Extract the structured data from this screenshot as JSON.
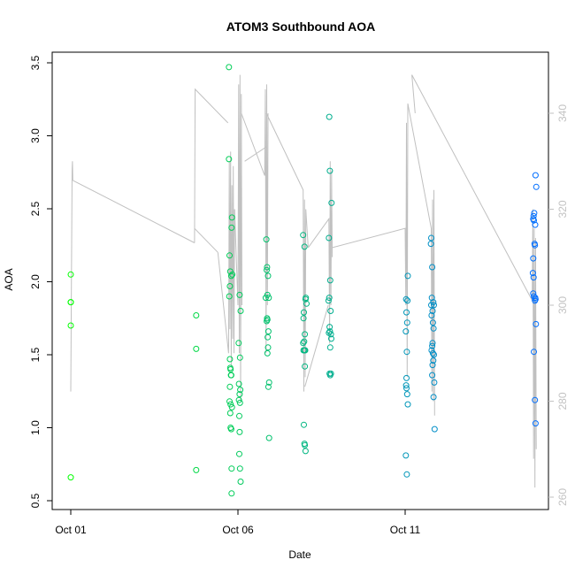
{
  "chart_data": {
    "type": "scatter",
    "title": "ATOM3 Southbound AOA",
    "xlabel": "Date",
    "ylabel": "AOA",
    "x_axis_type": "date",
    "x_ticks": [
      {
        "label": "Oct 01",
        "day": 1
      },
      {
        "label": "Oct 06",
        "day": 6
      },
      {
        "label": "Oct 11",
        "day": 11
      }
    ],
    "xlim": [
      0.3,
      15.9
    ],
    "ylim": [
      0.5,
      3.55
    ],
    "y_ticks": [
      0.5,
      1.0,
      1.5,
      2.0,
      2.5,
      3.0,
      3.5
    ],
    "y_tick_labels": [
      "0.5",
      "1.0",
      "1.5",
      "2.0",
      "2.5",
      "3.0",
      "3.5"
    ],
    "y2lim": [
      258.5,
      354
    ],
    "y2_ticks": [
      260,
      280,
      300,
      320,
      340
    ],
    "y2_tick_labels": [
      "260",
      "280",
      "300",
      "320",
      "340"
    ],
    "grid": false,
    "marker_color_gradient": [
      "#00ff00",
      "#0066ff"
    ],
    "line_color": "#c0c0c0",
    "points": [
      {
        "x": 1.0,
        "y": 2.05
      },
      {
        "x": 1.0,
        "y": 1.86
      },
      {
        "x": 1.0,
        "y": 1.86
      },
      {
        "x": 1.0,
        "y": 1.7
      },
      {
        "x": 1.0,
        "y": 0.66
      },
      {
        "x": 4.75,
        "y": 1.77
      },
      {
        "x": 4.75,
        "y": 1.54
      },
      {
        "x": 4.75,
        "y": 0.71
      },
      {
        "x": 5.73,
        "y": 3.47
      },
      {
        "x": 5.73,
        "y": 2.84
      },
      {
        "x": 5.75,
        "y": 2.18
      },
      {
        "x": 5.77,
        "y": 2.07
      },
      {
        "x": 5.76,
        "y": 1.97
      },
      {
        "x": 5.74,
        "y": 1.9
      },
      {
        "x": 5.82,
        "y": 2.44
      },
      {
        "x": 5.81,
        "y": 2.37
      },
      {
        "x": 5.83,
        "y": 2.05
      },
      {
        "x": 5.8,
        "y": 2.04
      },
      {
        "x": 5.76,
        "y": 1.47
      },
      {
        "x": 5.77,
        "y": 1.41
      },
      {
        "x": 5.78,
        "y": 1.4
      },
      {
        "x": 5.8,
        "y": 1.36
      },
      {
        "x": 5.79,
        "y": 1.36
      },
      {
        "x": 5.76,
        "y": 1.28
      },
      {
        "x": 5.75,
        "y": 1.18
      },
      {
        "x": 5.78,
        "y": 1.16
      },
      {
        "x": 5.82,
        "y": 1.14
      },
      {
        "x": 5.77,
        "y": 1.1
      },
      {
        "x": 5.78,
        "y": 1.0
      },
      {
        "x": 5.8,
        "y": 0.99
      },
      {
        "x": 5.81,
        "y": 0.72
      },
      {
        "x": 5.81,
        "y": 0.55
      },
      {
        "x": 6.02,
        "y": 1.58
      },
      {
        "x": 6.05,
        "y": 1.91
      },
      {
        "x": 6.08,
        "y": 1.8
      },
      {
        "x": 6.06,
        "y": 1.48
      },
      {
        "x": 6.03,
        "y": 1.3
      },
      {
        "x": 6.07,
        "y": 1.26
      },
      {
        "x": 6.05,
        "y": 1.23
      },
      {
        "x": 6.03,
        "y": 1.19
      },
      {
        "x": 6.06,
        "y": 1.17
      },
      {
        "x": 6.04,
        "y": 1.08
      },
      {
        "x": 6.05,
        "y": 0.97
      },
      {
        "x": 6.04,
        "y": 0.82
      },
      {
        "x": 6.06,
        "y": 0.72
      },
      {
        "x": 6.08,
        "y": 0.63
      },
      {
        "x": 6.85,
        "y": 2.29
      },
      {
        "x": 6.87,
        "y": 2.1
      },
      {
        "x": 6.86,
        "y": 2.08
      },
      {
        "x": 6.9,
        "y": 2.04
      },
      {
        "x": 6.88,
        "y": 1.91
      },
      {
        "x": 6.92,
        "y": 1.89
      },
      {
        "x": 6.83,
        "y": 1.89
      },
      {
        "x": 6.87,
        "y": 1.75
      },
      {
        "x": 6.88,
        "y": 1.74
      },
      {
        "x": 6.86,
        "y": 1.73
      },
      {
        "x": 6.91,
        "y": 1.66
      },
      {
        "x": 6.89,
        "y": 1.62
      },
      {
        "x": 6.9,
        "y": 1.55
      },
      {
        "x": 6.88,
        "y": 1.51
      },
      {
        "x": 6.93,
        "y": 1.31
      },
      {
        "x": 6.91,
        "y": 1.28
      },
      {
        "x": 6.93,
        "y": 0.93
      },
      {
        "x": 7.95,
        "y": 2.32
      },
      {
        "x": 7.99,
        "y": 2.24
      },
      {
        "x": 8.03,
        "y": 1.89
      },
      {
        "x": 8.02,
        "y": 1.88
      },
      {
        "x": 8.05,
        "y": 1.85
      },
      {
        "x": 7.97,
        "y": 1.79
      },
      {
        "x": 7.96,
        "y": 1.75
      },
      {
        "x": 8.0,
        "y": 1.64
      },
      {
        "x": 7.98,
        "y": 1.59
      },
      {
        "x": 7.95,
        "y": 1.58
      },
      {
        "x": 7.99,
        "y": 1.53
      },
      {
        "x": 8.01,
        "y": 1.53
      },
      {
        "x": 7.96,
        "y": 1.53
      },
      {
        "x": 8.0,
        "y": 1.42
      },
      {
        "x": 7.97,
        "y": 1.02
      },
      {
        "x": 7.99,
        "y": 0.89
      },
      {
        "x": 8.0,
        "y": 0.88
      },
      {
        "x": 8.02,
        "y": 0.84
      },
      {
        "x": 8.73,
        "y": 3.13
      },
      {
        "x": 8.75,
        "y": 2.76
      },
      {
        "x": 8.8,
        "y": 2.54
      },
      {
        "x": 8.72,
        "y": 2.3
      },
      {
        "x": 8.76,
        "y": 2.01
      },
      {
        "x": 8.73,
        "y": 1.89
      },
      {
        "x": 8.71,
        "y": 1.87
      },
      {
        "x": 8.77,
        "y": 1.8
      },
      {
        "x": 8.74,
        "y": 1.69
      },
      {
        "x": 8.75,
        "y": 1.66
      },
      {
        "x": 8.72,
        "y": 1.65
      },
      {
        "x": 8.78,
        "y": 1.64
      },
      {
        "x": 8.79,
        "y": 1.61
      },
      {
        "x": 8.76,
        "y": 1.55
      },
      {
        "x": 8.74,
        "y": 1.37
      },
      {
        "x": 8.78,
        "y": 1.37
      },
      {
        "x": 8.76,
        "y": 1.36
      },
      {
        "x": 11.03,
        "y": 1.88
      },
      {
        "x": 11.08,
        "y": 2.04
      },
      {
        "x": 11.07,
        "y": 1.87
      },
      {
        "x": 11.04,
        "y": 1.79
      },
      {
        "x": 11.06,
        "y": 1.72
      },
      {
        "x": 11.02,
        "y": 1.66
      },
      {
        "x": 11.05,
        "y": 1.52
      },
      {
        "x": 11.04,
        "y": 1.34
      },
      {
        "x": 11.03,
        "y": 1.29
      },
      {
        "x": 11.04,
        "y": 1.27
      },
      {
        "x": 11.06,
        "y": 1.23
      },
      {
        "x": 11.08,
        "y": 1.16
      },
      {
        "x": 11.02,
        "y": 0.81
      },
      {
        "x": 11.05,
        "y": 0.68
      },
      {
        "x": 11.78,
        "y": 2.3
      },
      {
        "x": 11.77,
        "y": 2.26
      },
      {
        "x": 11.81,
        "y": 2.1
      },
      {
        "x": 11.8,
        "y": 1.89
      },
      {
        "x": 11.84,
        "y": 1.86
      },
      {
        "x": 11.78,
        "y": 1.84
      },
      {
        "x": 11.86,
        "y": 1.84
      },
      {
        "x": 11.82,
        "y": 1.8
      },
      {
        "x": 11.79,
        "y": 1.77
      },
      {
        "x": 11.83,
        "y": 1.72
      },
      {
        "x": 11.85,
        "y": 1.68
      },
      {
        "x": 11.82,
        "y": 1.58
      },
      {
        "x": 11.81,
        "y": 1.56
      },
      {
        "x": 11.79,
        "y": 1.53
      },
      {
        "x": 11.83,
        "y": 1.51
      },
      {
        "x": 11.86,
        "y": 1.5
      },
      {
        "x": 11.84,
        "y": 1.46
      },
      {
        "x": 11.82,
        "y": 1.43
      },
      {
        "x": 11.81,
        "y": 1.36
      },
      {
        "x": 11.87,
        "y": 1.31
      },
      {
        "x": 11.85,
        "y": 1.21
      },
      {
        "x": 11.88,
        "y": 0.99
      },
      {
        "x": 14.9,
        "y": 2.73
      },
      {
        "x": 14.92,
        "y": 2.65
      },
      {
        "x": 14.86,
        "y": 2.47
      },
      {
        "x": 14.84,
        "y": 2.45
      },
      {
        "x": 14.83,
        "y": 2.43
      },
      {
        "x": 14.85,
        "y": 2.42
      },
      {
        "x": 14.89,
        "y": 2.39
      },
      {
        "x": 14.87,
        "y": 2.26
      },
      {
        "x": 14.88,
        "y": 2.25
      },
      {
        "x": 14.83,
        "y": 2.16
      },
      {
        "x": 14.82,
        "y": 2.06
      },
      {
        "x": 14.84,
        "y": 2.03
      },
      {
        "x": 14.83,
        "y": 1.92
      },
      {
        "x": 14.85,
        "y": 1.9
      },
      {
        "x": 14.89,
        "y": 1.89
      },
      {
        "x": 14.9,
        "y": 1.88
      },
      {
        "x": 14.88,
        "y": 1.87
      },
      {
        "x": 14.91,
        "y": 1.71
      },
      {
        "x": 14.85,
        "y": 1.52
      },
      {
        "x": 14.88,
        "y": 1.19
      },
      {
        "x": 14.9,
        "y": 1.03
      }
    ],
    "line_segments": [
      [
        [
          1.0,
          282
        ],
        [
          1.04,
          328
        ],
        [
          1.05,
          330
        ],
        [
          1.06,
          326
        ]
      ],
      [
        [
          1.06,
          326
        ],
        [
          4.7,
          313
        ]
      ],
      [
        [
          4.7,
          313
        ],
        [
          4.72,
          345
        ],
        [
          5.7,
          338
        ]
      ],
      [
        [
          4.7,
          316
        ],
        [
          5.4,
          311
        ]
      ],
      [
        [
          5.4,
          311
        ],
        [
          5.72,
          290
        ],
        [
          5.74,
          330
        ],
        [
          5.76,
          295
        ],
        [
          5.78,
          332
        ],
        [
          5.8,
          287
        ],
        [
          5.82,
          325
        ],
        [
          5.84,
          293
        ],
        [
          5.86,
          329
        ],
        [
          5.88,
          290
        ],
        [
          5.9,
          320
        ]
      ],
      [
        [
          5.9,
          320
        ],
        [
          6.0,
          300
        ],
        [
          6.02,
          346
        ],
        [
          6.04,
          290
        ],
        [
          6.06,
          348
        ],
        [
          6.08,
          280
        ],
        [
          6.1,
          344
        ],
        [
          6.12,
          300
        ]
      ],
      [
        [
          6.1,
          340
        ],
        [
          6.8,
          327
        ],
        [
          6.82,
          345
        ],
        [
          6.84,
          290
        ],
        [
          6.86,
          346
        ],
        [
          6.88,
          300
        ],
        [
          6.9,
          340
        ]
      ],
      [
        [
          6.2,
          330
        ],
        [
          6.85,
          333
        ]
      ],
      [
        [
          6.85,
          340
        ],
        [
          7.95,
          324
        ],
        [
          7.97,
          282
        ],
        [
          7.99,
          322
        ],
        [
          8.01,
          285
        ],
        [
          8.03,
          320
        ],
        [
          8.1,
          312
        ]
      ],
      [
        [
          8.1,
          312
        ],
        [
          8.72,
          318
        ],
        [
          8.74,
          292
        ],
        [
          8.76,
          330
        ],
        [
          8.78,
          300
        ],
        [
          8.8,
          328
        ],
        [
          8.82,
          310
        ]
      ],
      [
        [
          8.0,
          283
        ],
        [
          8.7,
          300
        ]
      ],
      [
        [
          8.82,
          312
        ],
        [
          11.0,
          316
        ],
        [
          11.02,
          300
        ],
        [
          11.04,
          338
        ],
        [
          11.06,
          285
        ],
        [
          11.08,
          342
        ]
      ],
      [
        [
          11.08,
          342
        ],
        [
          11.78,
          316
        ],
        [
          11.8,
          282
        ],
        [
          11.82,
          322
        ],
        [
          11.84,
          280
        ],
        [
          11.86,
          324
        ],
        [
          11.88,
          277
        ]
      ],
      [
        [
          11.2,
          348
        ],
        [
          11.3,
          340
        ]
      ],
      [
        [
          11.2,
          348
        ],
        [
          14.8,
          301
        ]
      ],
      [
        [
          14.8,
          301
        ],
        [
          14.82,
          320
        ],
        [
          14.84,
          268
        ],
        [
          14.86,
          316
        ],
        [
          14.88,
          262
        ],
        [
          14.9,
          314
        ],
        [
          14.92,
          270
        ]
      ]
    ]
  }
}
